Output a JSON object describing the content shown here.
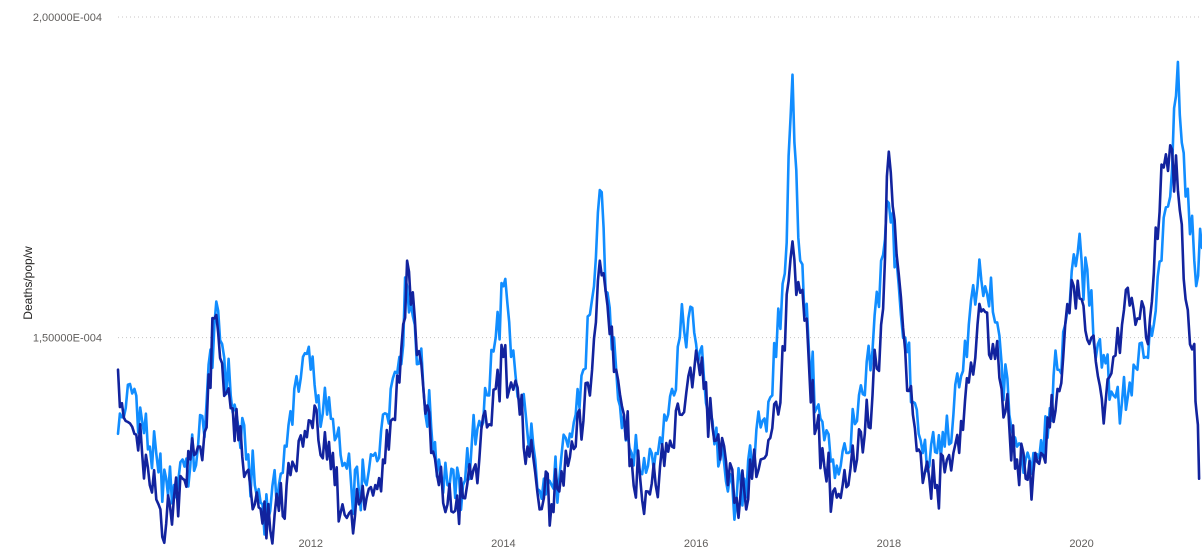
{
  "chart_data": {
    "type": "line",
    "title": "",
    "ylabel": "Deaths/pop/w",
    "xlabel": "",
    "ylim": [
      0.00012,
      0.0002
    ],
    "xlim": [
      2010.0,
      2021.25
    ],
    "grid": true,
    "y_ticks": [
      {
        "value": 0.00015,
        "label": "1,50000E-004"
      },
      {
        "value": 0.0002,
        "label": "2,00000E-004"
      }
    ],
    "x_ticks": [
      {
        "value": 2012,
        "label": "2012"
      },
      {
        "value": 2014,
        "label": "2014"
      },
      {
        "value": 2016,
        "label": "2016"
      },
      {
        "value": 2018,
        "label": "2018"
      },
      {
        "value": 2020,
        "label": "2020"
      }
    ],
    "series": [
      {
        "color": "#118dff",
        "points": [
          [
            2010.0,
            0.000135
          ],
          [
            2010.08,
            0.000139
          ],
          [
            2010.17,
            0.000142
          ],
          [
            2010.25,
            0.000137
          ],
          [
            2010.33,
            0.000133
          ],
          [
            2010.42,
            0.000129
          ],
          [
            2010.5,
            0.000128
          ],
          [
            2010.58,
            0.000127
          ],
          [
            2010.67,
            0.000131
          ],
          [
            2010.75,
            0.00013
          ],
          [
            2010.83,
            0.000133
          ],
          [
            2010.92,
            0.00014
          ],
          [
            2011.0,
            0.000152
          ],
          [
            2011.08,
            0.000149
          ],
          [
            2011.17,
            0.000141
          ],
          [
            2011.25,
            0.000136
          ],
          [
            2011.33,
            0.000131
          ],
          [
            2011.42,
            0.000127
          ],
          [
            2011.5,
            0.000124
          ],
          [
            2011.58,
            0.000123
          ],
          [
            2011.67,
            0.000127
          ],
          [
            2011.75,
            0.000133
          ],
          [
            2011.83,
            0.000142
          ],
          [
            2011.92,
            0.000147
          ],
          [
            2012.0,
            0.000145
          ],
          [
            2012.08,
            0.000141
          ],
          [
            2012.17,
            0.000138
          ],
          [
            2012.25,
            0.000134
          ],
          [
            2012.33,
            0.00013
          ],
          [
            2012.42,
            0.000127
          ],
          [
            2012.5,
            0.000126
          ],
          [
            2012.58,
            0.000127
          ],
          [
            2012.67,
            0.000132
          ],
          [
            2012.75,
            0.000138
          ],
          [
            2012.83,
            0.000142
          ],
          [
            2012.92,
            0.000147
          ],
          [
            2013.0,
            0.000158
          ],
          [
            2013.08,
            0.000152
          ],
          [
            2013.17,
            0.000142
          ],
          [
            2013.25,
            0.000136
          ],
          [
            2013.33,
            0.000131
          ],
          [
            2013.42,
            0.000127
          ],
          [
            2013.5,
            0.000125
          ],
          [
            2013.58,
            0.000127
          ],
          [
            2013.67,
            0.000133
          ],
          [
            2013.75,
            0.000137
          ],
          [
            2013.83,
            0.000141
          ],
          [
            2013.92,
            0.00015
          ],
          [
            2014.0,
            0.000158
          ],
          [
            2014.08,
            0.000147
          ],
          [
            2014.17,
            0.00014
          ],
          [
            2014.25,
            0.000135
          ],
          [
            2014.33,
            0.000131
          ],
          [
            2014.42,
            0.000128
          ],
          [
            2014.5,
            0.000127
          ],
          [
            2014.58,
            0.000128
          ],
          [
            2014.67,
            0.000133
          ],
          [
            2014.75,
            0.000138
          ],
          [
            2014.83,
            0.000145
          ],
          [
            2014.92,
            0.000156
          ],
          [
            2015.0,
            0.000173
          ],
          [
            2015.08,
            0.000157
          ],
          [
            2015.17,
            0.000145
          ],
          [
            2015.25,
            0.000138
          ],
          [
            2015.33,
            0.000132
          ],
          [
            2015.42,
            0.000129
          ],
          [
            2015.5,
            0.00013
          ],
          [
            2015.58,
            0.000132
          ],
          [
            2015.67,
            0.000138
          ],
          [
            2015.75,
            0.000142
          ],
          [
            2015.83,
            0.00015
          ],
          [
            2015.92,
            0.000153
          ],
          [
            2016.0,
            0.000149
          ],
          [
            2016.08,
            0.000144
          ],
          [
            2016.17,
            0.000137
          ],
          [
            2016.25,
            0.000131
          ],
          [
            2016.33,
            0.000126
          ],
          [
            2016.42,
            0.000125
          ],
          [
            2016.5,
            0.000128
          ],
          [
            2016.58,
            0.00013
          ],
          [
            2016.67,
            0.000136
          ],
          [
            2016.75,
            0.00014
          ],
          [
            2016.83,
            0.000147
          ],
          [
            2016.92,
            0.00016
          ],
          [
            2017.0,
            0.000191
          ],
          [
            2017.08,
            0.000162
          ],
          [
            2017.17,
            0.000148
          ],
          [
            2017.25,
            0.000139
          ],
          [
            2017.33,
            0.000134
          ],
          [
            2017.42,
            0.000131
          ],
          [
            2017.5,
            0.00013
          ],
          [
            2017.58,
            0.000132
          ],
          [
            2017.67,
            0.000137
          ],
          [
            2017.75,
            0.000141
          ],
          [
            2017.83,
            0.000148
          ],
          [
            2017.92,
            0.000162
          ],
          [
            2018.0,
            0.000171
          ],
          [
            2018.08,
            0.000162
          ],
          [
            2018.17,
            0.00015
          ],
          [
            2018.25,
            0.00014
          ],
          [
            2018.33,
            0.000134
          ],
          [
            2018.42,
            0.00013
          ],
          [
            2018.5,
            0.000132
          ],
          [
            2018.58,
            0.000133
          ],
          [
            2018.67,
            0.000138
          ],
          [
            2018.75,
            0.000144
          ],
          [
            2018.83,
            0.000152
          ],
          [
            2018.92,
            0.000158
          ],
          [
            2019.0,
            0.000158
          ],
          [
            2019.08,
            0.000154
          ],
          [
            2019.17,
            0.000146
          ],
          [
            2019.25,
            0.000138
          ],
          [
            2019.33,
            0.000133
          ],
          [
            2019.42,
            0.000131
          ],
          [
            2019.5,
            0.000132
          ],
          [
            2019.58,
            0.000134
          ],
          [
            2019.67,
            0.000139
          ],
          [
            2019.75,
            0.000145
          ],
          [
            2019.83,
            0.000152
          ],
          [
            2019.92,
            0.000163
          ],
          [
            2020.0,
            0.000162
          ],
          [
            2020.08,
            0.000155
          ],
          [
            2020.17,
            0.000149
          ],
          [
            2020.25,
            0.000146
          ],
          [
            2020.33,
            0.000141
          ],
          [
            2020.42,
            0.00014
          ],
          [
            2020.5,
            0.000143
          ],
          [
            2020.58,
            0.000145
          ],
          [
            2020.67,
            0.000147
          ],
          [
            2020.75,
            0.000152
          ],
          [
            2020.83,
            0.000162
          ],
          [
            2020.92,
            0.000172
          ],
          [
            2021.0,
            0.000193
          ],
          [
            2021.08,
            0.000172
          ],
          [
            2021.17,
            0.000162
          ],
          [
            2021.25,
            0.000164
          ]
        ]
      },
      {
        "color": "#12239e",
        "points": [
          [
            2010.0,
            0.000145
          ],
          [
            2010.08,
            0.000137
          ],
          [
            2010.17,
            0.000135
          ],
          [
            2010.25,
            0.000132
          ],
          [
            2010.33,
            0.000127
          ],
          [
            2010.42,
            0.000124
          ],
          [
            2010.5,
            0.000121
          ],
          [
            2010.58,
            0.000125
          ],
          [
            2010.67,
            0.000128
          ],
          [
            2010.75,
            0.000131
          ],
          [
            2010.83,
            0.000133
          ],
          [
            2010.92,
            0.000136
          ],
          [
            2011.0,
            0.000153
          ],
          [
            2011.08,
            0.000146
          ],
          [
            2011.17,
            0.000139
          ],
          [
            2011.25,
            0.000134
          ],
          [
            2011.33,
            0.000129
          ],
          [
            2011.42,
            0.000124
          ],
          [
            2011.5,
            0.000121
          ],
          [
            2011.58,
            0.00012
          ],
          [
            2011.67,
            0.000123
          ],
          [
            2011.75,
            0.000127
          ],
          [
            2011.83,
            0.00013
          ],
          [
            2011.92,
            0.000133
          ],
          [
            2012.0,
            0.000137
          ],
          [
            2012.08,
            0.000134
          ],
          [
            2012.17,
            0.000131
          ],
          [
            2012.25,
            0.000127
          ],
          [
            2012.33,
            0.000124
          ],
          [
            2012.42,
            0.000123
          ],
          [
            2012.5,
            0.000124
          ],
          [
            2012.58,
            0.000125
          ],
          [
            2012.67,
            0.000127
          ],
          [
            2012.75,
            0.000131
          ],
          [
            2012.83,
            0.000137
          ],
          [
            2012.92,
            0.000143
          ],
          [
            2013.0,
            0.000162
          ],
          [
            2013.08,
            0.000153
          ],
          [
            2013.17,
            0.000142
          ],
          [
            2013.25,
            0.000132
          ],
          [
            2013.33,
            0.000127
          ],
          [
            2013.42,
            0.000124
          ],
          [
            2013.5,
            0.000123
          ],
          [
            2013.58,
            0.000125
          ],
          [
            2013.67,
            0.000128
          ],
          [
            2013.75,
            0.000131
          ],
          [
            2013.83,
            0.000136
          ],
          [
            2013.92,
            0.000142
          ],
          [
            2014.0,
            0.000147
          ],
          [
            2014.08,
            0.000143
          ],
          [
            2014.17,
            0.000138
          ],
          [
            2014.25,
            0.000133
          ],
          [
            2014.33,
            0.000129
          ],
          [
            2014.42,
            0.000125
          ],
          [
            2014.5,
            0.000124
          ],
          [
            2014.58,
            0.000126
          ],
          [
            2014.67,
            0.00013
          ],
          [
            2014.75,
            0.000133
          ],
          [
            2014.83,
            0.000137
          ],
          [
            2014.92,
            0.000145
          ],
          [
            2015.0,
            0.000162
          ],
          [
            2015.08,
            0.000155
          ],
          [
            2015.17,
            0.000145
          ],
          [
            2015.25,
            0.000138
          ],
          [
            2015.33,
            0.000131
          ],
          [
            2015.42,
            0.000128
          ],
          [
            2015.5,
            0.000126
          ],
          [
            2015.58,
            0.000127
          ],
          [
            2015.67,
            0.00013
          ],
          [
            2015.75,
            0.000133
          ],
          [
            2015.83,
            0.000138
          ],
          [
            2015.92,
            0.000144
          ],
          [
            2016.0,
            0.000148
          ],
          [
            2016.08,
            0.000142
          ],
          [
            2016.17,
            0.000136
          ],
          [
            2016.25,
            0.000131
          ],
          [
            2016.33,
            0.000127
          ],
          [
            2016.42,
            0.000125
          ],
          [
            2016.5,
            0.000126
          ],
          [
            2016.58,
            0.000128
          ],
          [
            2016.67,
            0.000131
          ],
          [
            2016.75,
            0.000134
          ],
          [
            2016.83,
            0.00014
          ],
          [
            2016.92,
            0.000148
          ],
          [
            2017.0,
            0.000165
          ],
          [
            2017.08,
            0.000157
          ],
          [
            2017.17,
            0.000146
          ],
          [
            2017.25,
            0.000136
          ],
          [
            2017.33,
            0.00013
          ],
          [
            2017.42,
            0.000126
          ],
          [
            2017.5,
            0.000125
          ],
          [
            2017.58,
            0.000127
          ],
          [
            2017.67,
            0.000131
          ],
          [
            2017.75,
            0.000135
          ],
          [
            2017.83,
            0.000141
          ],
          [
            2017.92,
            0.000152
          ],
          [
            2018.0,
            0.000179
          ],
          [
            2018.08,
            0.000163
          ],
          [
            2018.17,
            0.000148
          ],
          [
            2018.25,
            0.000138
          ],
          [
            2018.33,
            0.000132
          ],
          [
            2018.42,
            0.000128
          ],
          [
            2018.5,
            0.000127
          ],
          [
            2018.58,
            0.000129
          ],
          [
            2018.67,
            0.000132
          ],
          [
            2018.75,
            0.000137
          ],
          [
            2018.83,
            0.000143
          ],
          [
            2018.92,
            0.000152
          ],
          [
            2019.0,
            0.000154
          ],
          [
            2019.08,
            0.000149
          ],
          [
            2019.17,
            0.000142
          ],
          [
            2019.25,
            0.000136
          ],
          [
            2019.33,
            0.000131
          ],
          [
            2019.42,
            0.000128
          ],
          [
            2019.5,
            0.000129
          ],
          [
            2019.58,
            0.000132
          ],
          [
            2019.67,
            0.000136
          ],
          [
            2019.75,
            0.000142
          ],
          [
            2019.83,
            0.000152
          ],
          [
            2019.92,
            0.000158
          ],
          [
            2020.0,
            0.000156
          ],
          [
            2020.08,
            0.000149
          ],
          [
            2020.17,
            0.000144
          ],
          [
            2020.25,
            0.00014
          ],
          [
            2020.33,
            0.000147
          ],
          [
            2020.42,
            0.000152
          ],
          [
            2020.5,
            0.000155
          ],
          [
            2020.58,
            0.000153
          ],
          [
            2020.67,
            0.00015
          ],
          [
            2020.75,
            0.00016
          ],
          [
            2020.83,
            0.000177
          ],
          [
            2020.92,
            0.00018
          ],
          [
            2021.0,
            0.000173
          ],
          [
            2021.08,
            0.000156
          ],
          [
            2021.17,
            0.000149
          ],
          [
            2021.22,
            0.000128
          ]
        ]
      }
    ]
  }
}
